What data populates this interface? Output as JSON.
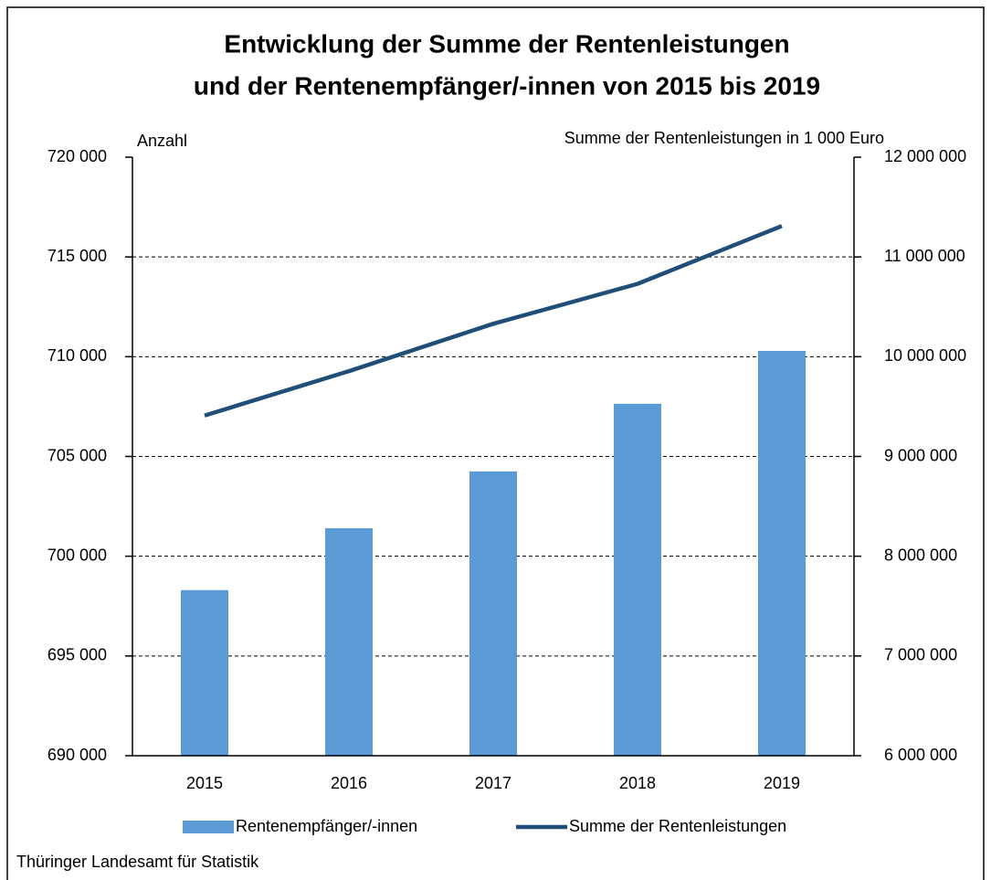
{
  "chart_data": {
    "type": "bar_line",
    "title": [
      "Entwicklung der Summe der Rentenleistungen",
      "und der Rentenempfänger/-innen von 2015 bis 2019"
    ],
    "y_label": "Anzahl",
    "y2_label": "Summe der Rentenleistungen in 1 000 Euro",
    "source": "Thüringer Landesamt für Statistik",
    "categories": [
      "2015",
      "2016",
      "2017",
      "2018",
      "2019"
    ],
    "series": [
      {
        "name": "Rentenempfänger/-innen",
        "type": "bar",
        "color": "#5b9bd5",
        "values": [
          698300,
          701400,
          704250,
          707640,
          710290
        ]
      },
      {
        "name": "Summe der Rentenleistungen",
        "type": "line",
        "color": "#1f4e79",
        "axis": "y2",
        "values": [
          9410000,
          9855000,
          10330000,
          10730000,
          11310000
        ]
      }
    ],
    "ylim": [
      690000,
      720000
    ],
    "yticks": [
      {
        "value": 690000,
        "label": "690 000"
      },
      {
        "value": 695000,
        "label": "695 000"
      },
      {
        "value": 700000,
        "label": "700 000"
      },
      {
        "value": 705000,
        "label": "705 000"
      },
      {
        "value": 710000,
        "label": "710 000"
      },
      {
        "value": 715000,
        "label": "715 000"
      },
      {
        "value": 720000,
        "label": "720 000"
      }
    ],
    "y2lim": [
      6000000,
      12000000
    ],
    "y2ticks": [
      {
        "value": 6000000,
        "label": "6 000 000"
      },
      {
        "value": 7000000,
        "label": "7 000 000"
      },
      {
        "value": 8000000,
        "label": "8 000 000"
      },
      {
        "value": 9000000,
        "label": "9 000 000"
      },
      {
        "value": 10000000,
        "label": "10 000 000"
      },
      {
        "value": 11000000,
        "label": "11 000 000"
      },
      {
        "value": 12000000,
        "label": "12 000 000"
      }
    ],
    "grid": true,
    "legend": "bottom"
  }
}
